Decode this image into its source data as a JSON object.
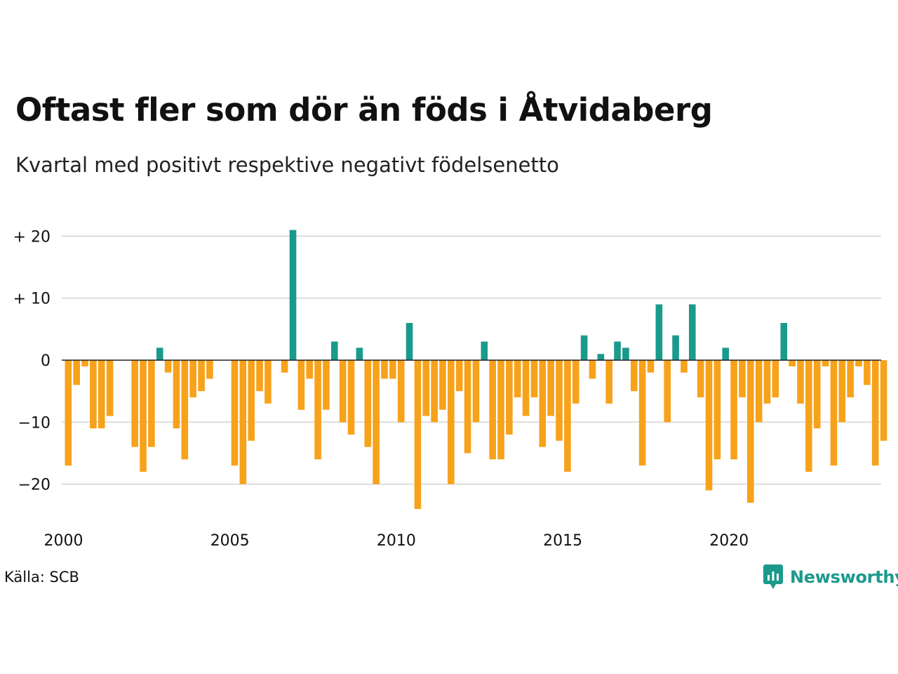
{
  "title": "Oftast fler som dör än föds i Åtvidaberg",
  "subtitle": "Kvartal med positivt respektive negativt födelsenetto",
  "source": "Källa: SCB",
  "brand": "Newsworthy",
  "colors": {
    "positive": "#1a9a8c",
    "negative": "#f7a21b",
    "grid": "#dddddd",
    "zero": "#222222",
    "brand": "#1a9a8c"
  },
  "chart_data": {
    "type": "bar",
    "x_start_year": 2000,
    "quarters_per_year": 4,
    "y_ticks": [
      {
        "value": 20,
        "label": "+ 20"
      },
      {
        "value": 10,
        "label": "+ 10"
      },
      {
        "value": 0,
        "label": "0"
      },
      {
        "value": -10,
        "label": "−10"
      },
      {
        "value": -20,
        "label": "−20"
      }
    ],
    "x_ticks": [
      {
        "year": 2000,
        "label": "2000"
      },
      {
        "year": 2005,
        "label": "2005"
      },
      {
        "year": 2010,
        "label": "2010"
      },
      {
        "year": 2015,
        "label": "2015"
      },
      {
        "year": 2020,
        "label": "2020"
      }
    ],
    "ylim": [
      -25,
      22
    ],
    "values": [
      -17,
      -4,
      -1,
      -11,
      -11,
      -9,
      0,
      0,
      -14,
      -18,
      -14,
      2,
      -2,
      -11,
      -16,
      -6,
      -5,
      -3,
      0,
      0,
      -17,
      -20,
      -13,
      -5,
      -7,
      0,
      -2,
      21,
      -8,
      -3,
      -16,
      -8,
      3,
      -10,
      -12,
      2,
      -14,
      -20,
      -3,
      -3,
      -10,
      6,
      -24,
      -9,
      -10,
      -8,
      -20,
      -5,
      -15,
      -10,
      3,
      -16,
      -16,
      -12,
      -6,
      -9,
      -6,
      -14,
      -9,
      -13,
      -18,
      -7,
      4,
      -3,
      1,
      -7,
      3,
      2,
      -5,
      -17,
      -2,
      9,
      -10,
      4,
      -2,
      9,
      -6,
      -21,
      -16,
      2,
      -16,
      -6,
      -23,
      -10,
      -7,
      -6,
      6,
      -1,
      -7,
      -18,
      -11,
      -1,
      -17,
      -10,
      -6,
      -1,
      -4,
      -17,
      -13
    ]
  }
}
